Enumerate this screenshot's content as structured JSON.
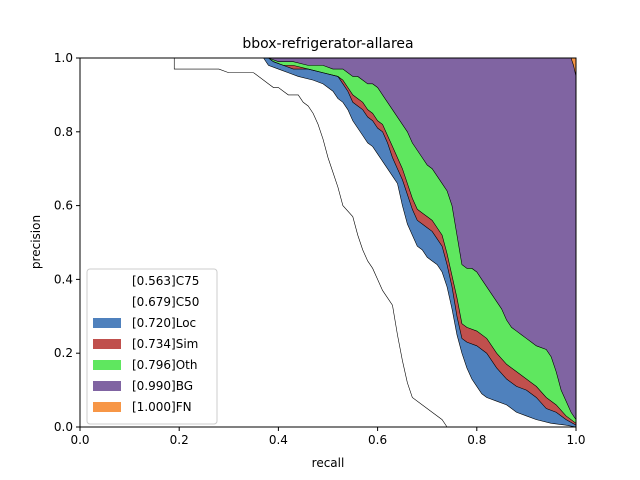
{
  "chart_data": {
    "type": "area",
    "title": "bbox-refrigerator-allarea",
    "xlabel": "recall",
    "ylabel": "precision",
    "xlim": [
      0,
      1
    ],
    "ylim": [
      0,
      1
    ],
    "xticks": [
      "0.0",
      "0.2",
      "0.4",
      "0.6",
      "0.8",
      "1.0"
    ],
    "yticks": [
      "0.0",
      "0.2",
      "0.4",
      "0.6",
      "0.8",
      "1.0"
    ],
    "grid": false,
    "legend_position": "lower-left",
    "series": [
      {
        "name": "[0.563]C75",
        "color": "#ffffff",
        "points": [
          [
            0,
            1
          ],
          [
            0.19,
            1
          ],
          [
            0.19,
            0.97
          ],
          [
            0.28,
            0.97
          ],
          [
            0.3,
            0.96
          ],
          [
            0.35,
            0.96
          ],
          [
            0.37,
            0.94
          ],
          [
            0.38,
            0.93
          ],
          [
            0.39,
            0.92
          ],
          [
            0.4,
            0.92
          ],
          [
            0.41,
            0.91
          ],
          [
            0.42,
            0.9
          ],
          [
            0.44,
            0.9
          ],
          [
            0.45,
            0.88
          ],
          [
            0.46,
            0.87
          ],
          [
            0.47,
            0.85
          ],
          [
            0.48,
            0.82
          ],
          [
            0.49,
            0.78
          ],
          [
            0.5,
            0.73
          ],
          [
            0.51,
            0.69
          ],
          [
            0.52,
            0.65
          ],
          [
            0.53,
            0.6
          ],
          [
            0.55,
            0.57
          ],
          [
            0.56,
            0.52
          ],
          [
            0.57,
            0.48
          ],
          [
            0.58,
            0.45
          ],
          [
            0.59,
            0.43
          ],
          [
            0.6,
            0.4
          ],
          [
            0.61,
            0.37
          ],
          [
            0.62,
            0.35
          ],
          [
            0.63,
            0.33
          ],
          [
            0.64,
            0.25
          ],
          [
            0.65,
            0.18
          ],
          [
            0.66,
            0.12
          ],
          [
            0.67,
            0.08
          ],
          [
            0.69,
            0.06
          ],
          [
            0.71,
            0.04
          ],
          [
            0.73,
            0.02
          ],
          [
            0.74,
            0
          ]
        ]
      },
      {
        "name": "[0.679]C50",
        "color": "#ffffff",
        "points": [
          [
            0,
            1
          ],
          [
            0.37,
            1
          ],
          [
            0.38,
            0.98
          ],
          [
            0.4,
            0.97
          ],
          [
            0.42,
            0.96
          ],
          [
            0.44,
            0.95
          ],
          [
            0.47,
            0.94
          ],
          [
            0.49,
            0.93
          ],
          [
            0.51,
            0.91
          ],
          [
            0.52,
            0.89
          ],
          [
            0.53,
            0.88
          ],
          [
            0.54,
            0.86
          ],
          [
            0.55,
            0.83
          ],
          [
            0.56,
            0.81
          ],
          [
            0.57,
            0.79
          ],
          [
            0.58,
            0.77
          ],
          [
            0.59,
            0.76
          ],
          [
            0.6,
            0.74
          ],
          [
            0.61,
            0.72
          ],
          [
            0.62,
            0.7
          ],
          [
            0.63,
            0.68
          ],
          [
            0.64,
            0.66
          ],
          [
            0.65,
            0.6
          ],
          [
            0.66,
            0.55
          ],
          [
            0.67,
            0.52
          ],
          [
            0.68,
            0.49
          ],
          [
            0.69,
            0.48
          ],
          [
            0.7,
            0.46
          ],
          [
            0.71,
            0.45
          ],
          [
            0.72,
            0.44
          ],
          [
            0.73,
            0.42
          ],
          [
            0.74,
            0.38
          ],
          [
            0.75,
            0.32
          ],
          [
            0.76,
            0.25
          ],
          [
            0.77,
            0.2
          ],
          [
            0.78,
            0.16
          ],
          [
            0.79,
            0.13
          ],
          [
            0.8,
            0.11
          ],
          [
            0.81,
            0.09
          ],
          [
            0.82,
            0.08
          ],
          [
            0.84,
            0.07
          ],
          [
            0.86,
            0.06
          ],
          [
            0.88,
            0.04
          ],
          [
            0.9,
            0.03
          ],
          [
            0.92,
            0.02
          ],
          [
            0.95,
            0.01
          ],
          [
            0.98,
            0.005
          ],
          [
            1.0,
            0
          ]
        ]
      },
      {
        "name": "[0.720]Loc",
        "color": "#4f81bd",
        "points": [
          [
            0,
            1
          ],
          [
            0.38,
            1
          ],
          [
            0.39,
            0.99
          ],
          [
            0.41,
            0.98
          ],
          [
            0.43,
            0.97
          ],
          [
            0.46,
            0.97
          ],
          [
            0.49,
            0.96
          ],
          [
            0.52,
            0.95
          ],
          [
            0.53,
            0.93
          ],
          [
            0.54,
            0.91
          ],
          [
            0.55,
            0.88
          ],
          [
            0.56,
            0.87
          ],
          [
            0.57,
            0.86
          ],
          [
            0.58,
            0.84
          ],
          [
            0.59,
            0.83
          ],
          [
            0.6,
            0.81
          ],
          [
            0.61,
            0.8
          ],
          [
            0.62,
            0.77
          ],
          [
            0.63,
            0.73
          ],
          [
            0.64,
            0.7
          ],
          [
            0.65,
            0.67
          ],
          [
            0.66,
            0.63
          ],
          [
            0.67,
            0.59
          ],
          [
            0.68,
            0.56
          ],
          [
            0.69,
            0.55
          ],
          [
            0.7,
            0.54
          ],
          [
            0.71,
            0.53
          ],
          [
            0.72,
            0.51
          ],
          [
            0.73,
            0.49
          ],
          [
            0.74,
            0.44
          ],
          [
            0.75,
            0.38
          ],
          [
            0.76,
            0.3
          ],
          [
            0.77,
            0.24
          ],
          [
            0.78,
            0.23
          ],
          [
            0.8,
            0.22
          ],
          [
            0.82,
            0.2
          ],
          [
            0.84,
            0.16
          ],
          [
            0.86,
            0.13
          ],
          [
            0.88,
            0.11
          ],
          [
            0.9,
            0.1
          ],
          [
            0.92,
            0.08
          ],
          [
            0.94,
            0.05
          ],
          [
            0.96,
            0.04
          ],
          [
            0.98,
            0.02
          ],
          [
            1.0,
            0.005
          ]
        ]
      },
      {
        "name": "[0.734]Sim",
        "color": "#c0504d",
        "points": [
          [
            0,
            1
          ],
          [
            0.38,
            1
          ],
          [
            0.39,
            0.99
          ],
          [
            0.41,
            0.98
          ],
          [
            0.43,
            0.98
          ],
          [
            0.46,
            0.97
          ],
          [
            0.49,
            0.96
          ],
          [
            0.52,
            0.95
          ],
          [
            0.53,
            0.94
          ],
          [
            0.54,
            0.92
          ],
          [
            0.55,
            0.9
          ],
          [
            0.56,
            0.89
          ],
          [
            0.57,
            0.88
          ],
          [
            0.58,
            0.86
          ],
          [
            0.59,
            0.85
          ],
          [
            0.6,
            0.83
          ],
          [
            0.61,
            0.82
          ],
          [
            0.62,
            0.79
          ],
          [
            0.63,
            0.76
          ],
          [
            0.64,
            0.73
          ],
          [
            0.65,
            0.7
          ],
          [
            0.66,
            0.66
          ],
          [
            0.67,
            0.62
          ],
          [
            0.68,
            0.59
          ],
          [
            0.69,
            0.58
          ],
          [
            0.7,
            0.57
          ],
          [
            0.71,
            0.56
          ],
          [
            0.72,
            0.54
          ],
          [
            0.73,
            0.52
          ],
          [
            0.74,
            0.47
          ],
          [
            0.75,
            0.41
          ],
          [
            0.76,
            0.35
          ],
          [
            0.77,
            0.28
          ],
          [
            0.78,
            0.27
          ],
          [
            0.8,
            0.26
          ],
          [
            0.82,
            0.24
          ],
          [
            0.84,
            0.2
          ],
          [
            0.86,
            0.17
          ],
          [
            0.88,
            0.15
          ],
          [
            0.9,
            0.13
          ],
          [
            0.92,
            0.11
          ],
          [
            0.94,
            0.08
          ],
          [
            0.96,
            0.06
          ],
          [
            0.98,
            0.03
          ],
          [
            1.0,
            0.01
          ]
        ]
      },
      {
        "name": "[0.796]Oth",
        "color": "#5fe75f",
        "points": [
          [
            0,
            1
          ],
          [
            0.38,
            1
          ],
          [
            0.4,
            0.99
          ],
          [
            0.43,
            0.99
          ],
          [
            0.46,
            0.98
          ],
          [
            0.49,
            0.98
          ],
          [
            0.51,
            0.97
          ],
          [
            0.53,
            0.97
          ],
          [
            0.54,
            0.96
          ],
          [
            0.55,
            0.95
          ],
          [
            0.56,
            0.95
          ],
          [
            0.57,
            0.94
          ],
          [
            0.58,
            0.93
          ],
          [
            0.59,
            0.93
          ],
          [
            0.6,
            0.92
          ],
          [
            0.61,
            0.9
          ],
          [
            0.62,
            0.88
          ],
          [
            0.63,
            0.86
          ],
          [
            0.64,
            0.84
          ],
          [
            0.65,
            0.82
          ],
          [
            0.66,
            0.8
          ],
          [
            0.67,
            0.77
          ],
          [
            0.68,
            0.75
          ],
          [
            0.69,
            0.73
          ],
          [
            0.7,
            0.71
          ],
          [
            0.71,
            0.7
          ],
          [
            0.72,
            0.68
          ],
          [
            0.73,
            0.66
          ],
          [
            0.74,
            0.64
          ],
          [
            0.75,
            0.6
          ],
          [
            0.76,
            0.52
          ],
          [
            0.77,
            0.44
          ],
          [
            0.78,
            0.43
          ],
          [
            0.79,
            0.43
          ],
          [
            0.8,
            0.42
          ],
          [
            0.81,
            0.4
          ],
          [
            0.82,
            0.38
          ],
          [
            0.83,
            0.36
          ],
          [
            0.84,
            0.34
          ],
          [
            0.85,
            0.32
          ],
          [
            0.86,
            0.29
          ],
          [
            0.87,
            0.27
          ],
          [
            0.88,
            0.26
          ],
          [
            0.89,
            0.25
          ],
          [
            0.9,
            0.24
          ],
          [
            0.91,
            0.23
          ],
          [
            0.92,
            0.22
          ],
          [
            0.94,
            0.21
          ],
          [
            0.95,
            0.19
          ],
          [
            0.96,
            0.15
          ],
          [
            0.97,
            0.1
          ],
          [
            0.98,
            0.07
          ],
          [
            0.99,
            0.04
          ],
          [
            1.0,
            0.02
          ]
        ]
      },
      {
        "name": "[0.990]BG",
        "color": "#8064a2",
        "points": [
          [
            0,
            1
          ],
          [
            0.99,
            1
          ],
          [
            0.995,
            0.98
          ],
          [
            1.0,
            0.95
          ],
          [
            1.0,
            0
          ]
        ]
      },
      {
        "name": "[1.000]FN",
        "color": "#f79646",
        "points": [
          [
            0,
            1
          ],
          [
            1.0,
            1
          ],
          [
            1.0,
            0
          ]
        ]
      }
    ]
  }
}
